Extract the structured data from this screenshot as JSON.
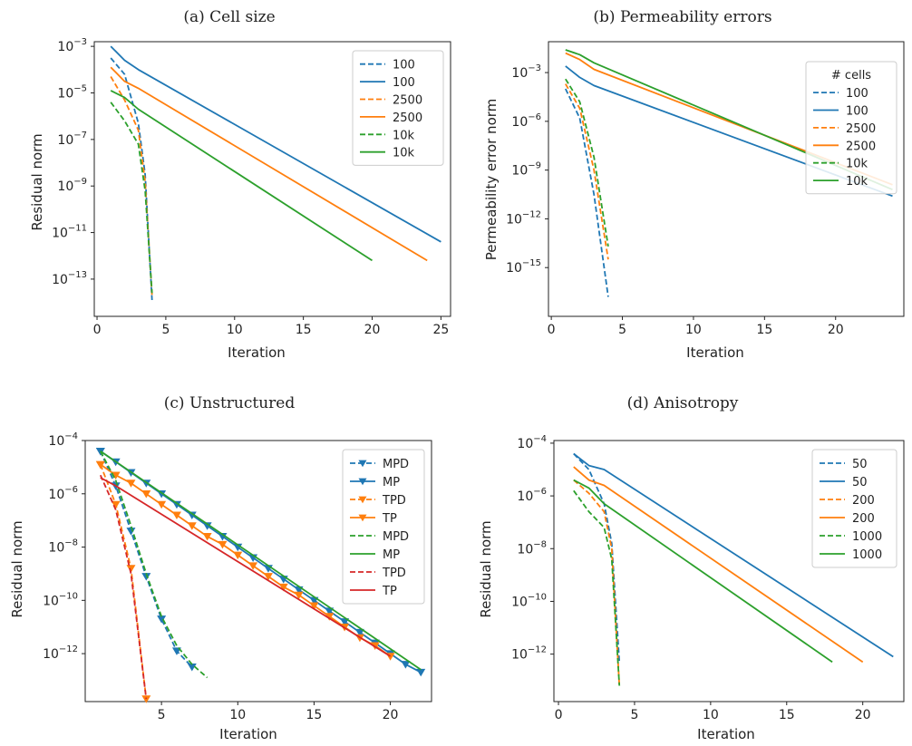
{
  "chart_data": [
    {
      "id": "a",
      "type": "line",
      "title": "(a) Cell size",
      "xlabel": "Iteration",
      "ylabel": "Residual norm",
      "yscale": "log",
      "xlim": [
        -0.2,
        25.7
      ],
      "ylim_exp": [
        -14.6,
        -2.8
      ],
      "xticks": [
        0,
        5,
        10,
        15,
        20,
        25
      ],
      "yticks_exp": [
        -3,
        -5,
        -7,
        -9,
        -11,
        -13
      ],
      "legend": {
        "placement": "upper-right",
        "title": ""
      },
      "series": [
        {
          "name": "100",
          "color": "#1f77b4",
          "dash": true,
          "marker": false,
          "x": [
            1,
            2,
            3,
            3.5,
            4
          ],
          "y_exp": [
            -3.5,
            -4.2,
            -6.3,
            -8.5,
            -13.9
          ]
        },
        {
          "name": "100",
          "color": "#1f77b4",
          "dash": false,
          "marker": false,
          "x": [
            1,
            2,
            3,
            25
          ],
          "y_exp": [
            -3.0,
            -3.6,
            -4.0,
            -11.4
          ]
        },
        {
          "name": "2500",
          "color": "#ff7f0e",
          "dash": true,
          "marker": false,
          "x": [
            1,
            2,
            3,
            3.5,
            4
          ],
          "y_exp": [
            -4.3,
            -5.3,
            -6.6,
            -8.8,
            -13.7
          ]
        },
        {
          "name": "2500",
          "color": "#ff7f0e",
          "dash": false,
          "marker": false,
          "x": [
            1,
            2,
            3,
            24
          ],
          "y_exp": [
            -3.9,
            -4.5,
            -4.8,
            -12.2
          ]
        },
        {
          "name": "10k",
          "color": "#2ca02c",
          "dash": true,
          "marker": false,
          "x": [
            1,
            2,
            3,
            3.5,
            4
          ],
          "y_exp": [
            -5.4,
            -6.2,
            -7.2,
            -9.2,
            -13.6
          ]
        },
        {
          "name": "10k",
          "color": "#2ca02c",
          "dash": false,
          "marker": false,
          "x": [
            1,
            2,
            3,
            20
          ],
          "y_exp": [
            -4.9,
            -5.2,
            -5.7,
            -12.2
          ]
        }
      ]
    },
    {
      "id": "b",
      "type": "line",
      "title": "(b) Permeability errors",
      "xlabel": "Iteration",
      "ylabel": "Permeability error norm",
      "yscale": "log",
      "xlim": [
        -0.2,
        24.8
      ],
      "ylim_exp": [
        -18.0,
        -1.1
      ],
      "xticks": [
        0,
        5,
        10,
        15,
        20,
        25
      ],
      "yticks_exp": [
        -3,
        -6,
        -9,
        -12,
        -15
      ],
      "legend": {
        "placement": "upper-right",
        "title": "# cells"
      },
      "series": [
        {
          "name": "100",
          "color": "#1f77b4",
          "dash": true,
          "marker": false,
          "x": [
            1,
            2,
            3,
            4
          ],
          "y_exp": [
            -4.0,
            -5.8,
            -10.5,
            -16.8
          ]
        },
        {
          "name": "100",
          "color": "#1f77b4",
          "dash": false,
          "marker": false,
          "x": [
            1,
            2,
            3,
            24
          ],
          "y_exp": [
            -2.6,
            -3.3,
            -3.8,
            -10.6
          ]
        },
        {
          "name": "2500",
          "color": "#ff7f0e",
          "dash": true,
          "marker": false,
          "x": [
            1,
            2,
            3,
            4
          ],
          "y_exp": [
            -3.7,
            -5.2,
            -9.0,
            -14.5
          ]
        },
        {
          "name": "2500",
          "color": "#ff7f0e",
          "dash": false,
          "marker": false,
          "x": [
            1,
            2,
            3,
            24
          ],
          "y_exp": [
            -1.8,
            -2.2,
            -2.8,
            -9.9
          ]
        },
        {
          "name": "10k",
          "color": "#2ca02c",
          "dash": true,
          "marker": false,
          "x": [
            1,
            2,
            3,
            4
          ],
          "y_exp": [
            -3.4,
            -4.8,
            -8.2,
            -13.7
          ]
        },
        {
          "name": "10k",
          "color": "#2ca02c",
          "dash": false,
          "marker": false,
          "x": [
            1,
            2,
            3,
            24
          ],
          "y_exp": [
            -1.6,
            -1.9,
            -2.4,
            -10.2
          ]
        }
      ]
    },
    {
      "id": "c",
      "type": "line",
      "title": "(c) Unstructured",
      "xlabel": "Iteration",
      "ylabel": "Residual norm",
      "yscale": "log",
      "xlim": [
        0,
        22.7
      ],
      "ylim_exp": [
        -13.8,
        -4.0
      ],
      "xticks": [
        5,
        10,
        15,
        20
      ],
      "yticks_exp": [
        -4,
        -6,
        -8,
        -10,
        -12
      ],
      "legend": {
        "placement": "upper-right",
        "title": ""
      },
      "series": [
        {
          "name": "MPD",
          "color": "#1f77b4",
          "dash": true,
          "marker": true,
          "x": [
            1,
            2,
            3,
            4,
            5,
            6,
            7
          ],
          "y_exp": [
            -4.4,
            -5.7,
            -7.4,
            -9.1,
            -10.7,
            -11.9,
            -12.5
          ]
        },
        {
          "name": "MP",
          "color": "#1f77b4",
          "dash": false,
          "marker": true,
          "x": [
            1,
            2,
            3,
            4,
            5,
            6,
            7,
            8,
            9,
            10,
            11,
            12,
            13,
            14,
            15,
            16,
            17,
            18,
            19,
            20,
            21,
            22
          ],
          "y_exp": [
            -4.4,
            -4.8,
            -5.2,
            -5.6,
            -6.0,
            -6.4,
            -6.8,
            -7.2,
            -7.6,
            -8.0,
            -8.4,
            -8.8,
            -9.2,
            -9.6,
            -10.0,
            -10.4,
            -10.8,
            -11.2,
            -11.6,
            -12.0,
            -12.4,
            -12.7
          ]
        },
        {
          "name": "TPD",
          "color": "#ff7f0e",
          "dash": true,
          "marker": true,
          "x": [
            1,
            2,
            3,
            4
          ],
          "y_exp": [
            -4.9,
            -6.4,
            -8.8,
            -13.7
          ]
        },
        {
          "name": "TP",
          "color": "#ff7f0e",
          "dash": false,
          "marker": true,
          "x": [
            1,
            2,
            3,
            4,
            5,
            6,
            7,
            8,
            9,
            10,
            11,
            12,
            13,
            14,
            15,
            16,
            17,
            18,
            19,
            20
          ],
          "y_exp": [
            -4.9,
            -5.3,
            -5.6,
            -6.0,
            -6.4,
            -6.8,
            -7.2,
            -7.6,
            -7.9,
            -8.3,
            -8.7,
            -9.1,
            -9.5,
            -9.8,
            -10.2,
            -10.6,
            -11.0,
            -11.4,
            -11.7,
            -12.1
          ]
        },
        {
          "name": "MPD",
          "color": "#2ca02c",
          "dash": true,
          "marker": false,
          "x": [
            1,
            2,
            3,
            4,
            5,
            6,
            7,
            8
          ],
          "y_exp": [
            -4.4,
            -5.5,
            -7.2,
            -9.0,
            -10.6,
            -11.7,
            -12.4,
            -12.9
          ]
        },
        {
          "name": "MP",
          "color": "#2ca02c",
          "dash": false,
          "marker": false,
          "x": [
            1,
            22
          ],
          "y_exp": [
            -4.4,
            -12.6
          ]
        },
        {
          "name": "TPD",
          "color": "#d62728",
          "dash": true,
          "marker": false,
          "x": [
            1,
            2,
            3,
            4
          ],
          "y_exp": [
            -5.3,
            -6.6,
            -9.0,
            -13.7
          ]
        },
        {
          "name": "TP",
          "color": "#d62728",
          "dash": false,
          "marker": false,
          "x": [
            1,
            2,
            20
          ],
          "y_exp": [
            -5.4,
            -5.7,
            -12.1
          ]
        }
      ]
    },
    {
      "id": "d",
      "type": "line",
      "title": "(d) Anisotropy",
      "xlabel": "Iteration",
      "ylabel": "Residual norm",
      "yscale": "log",
      "xlim": [
        -0.3,
        22.7
      ],
      "ylim_exp": [
        -13.8,
        -3.9
      ],
      "xticks": [
        0,
        5,
        10,
        15,
        20
      ],
      "yticks_exp": [
        -4,
        -6,
        -8,
        -10,
        -12
      ],
      "legend": {
        "placement": "upper-right",
        "title": ""
      },
      "series": [
        {
          "name": "50",
          "color": "#1f77b4",
          "dash": true,
          "marker": false,
          "x": [
            1,
            2,
            3,
            3.5,
            4
          ],
          "y_exp": [
            -4.4,
            -5.0,
            -6.3,
            -7.8,
            -12.3
          ]
        },
        {
          "name": "50",
          "color": "#1f77b4",
          "dash": false,
          "marker": false,
          "x": [
            1,
            2,
            3,
            22
          ],
          "y_exp": [
            -4.4,
            -4.85,
            -5.0,
            -12.1
          ]
        },
        {
          "name": "200",
          "color": "#ff7f0e",
          "dash": true,
          "marker": false,
          "x": [
            1,
            2,
            3,
            3.5,
            4
          ],
          "y_exp": [
            -5.4,
            -5.9,
            -6.6,
            -8.0,
            -13.2
          ]
        },
        {
          "name": "200",
          "color": "#ff7f0e",
          "dash": false,
          "marker": false,
          "x": [
            1,
            2,
            3,
            20
          ],
          "y_exp": [
            -4.9,
            -5.4,
            -5.6,
            -12.3
          ]
        },
        {
          "name": "1000",
          "color": "#2ca02c",
          "dash": true,
          "marker": false,
          "x": [
            1,
            2,
            3,
            3.5,
            4
          ],
          "y_exp": [
            -5.8,
            -6.6,
            -7.2,
            -8.4,
            -13.2
          ]
        },
        {
          "name": "1000",
          "color": "#2ca02c",
          "dash": false,
          "marker": false,
          "x": [
            1,
            2,
            3,
            18
          ],
          "y_exp": [
            -5.4,
            -5.7,
            -6.3,
            -12.3
          ]
        }
      ]
    }
  ]
}
